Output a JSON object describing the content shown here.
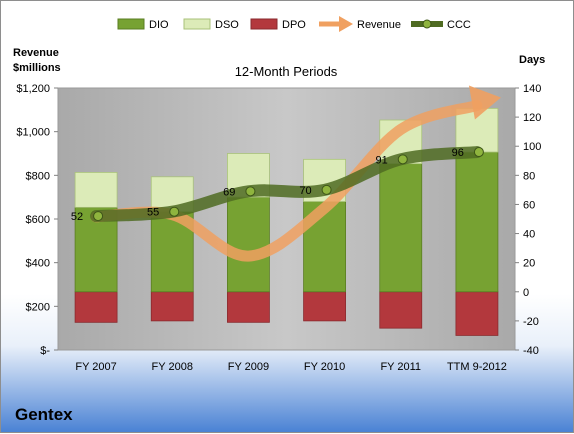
{
  "company": "Gentex",
  "colors": {
    "dio": "#77a232",
    "dso": "#dcebb8",
    "dpo": "#b3383d",
    "revenue": "#f0a060",
    "ccc": "#4f6b22",
    "plot_bg": "#b7b7b7"
  },
  "chart_data": {
    "type": "bar",
    "title": "12-Month Periods",
    "categories": [
      "FY 2007",
      "FY 2008",
      "FY 2009",
      "FY 2010",
      "FY 2011",
      "TTM 9-2012"
    ],
    "left_axis": {
      "title_line1": "Revenue",
      "title_line2": "$millions",
      "range": [
        0,
        1200
      ],
      "ticks": [
        "$-",
        "$200",
        "$400",
        "$600",
        "$800",
        "$1,000",
        "$1,200"
      ]
    },
    "right_axis": {
      "title": "Days",
      "range": [
        -40,
        140
      ],
      "ticks": [
        "-40",
        "-20",
        "0",
        "20",
        "40",
        "60",
        "80",
        "100",
        "120",
        "140"
      ]
    },
    "legend": {
      "position": "top",
      "items": [
        "DIO",
        "DSO",
        "DPO",
        "Revenue",
        "CCC"
      ]
    },
    "days_series": {
      "DIO": [
        58,
        55,
        65,
        62,
        88,
        96
      ],
      "DSO": [
        24,
        24,
        30,
        29,
        30,
        30
      ],
      "DPO": [
        -21,
        -20,
        -21,
        -20,
        -25,
        -30
      ]
    },
    "revenue": [
      610,
      620,
      430,
      650,
      1010,
      1120
    ],
    "ccc": {
      "values": [
        52,
        55,
        69,
        70,
        91,
        96
      ],
      "labels": [
        "52",
        "55",
        "69",
        "70",
        "91",
        "96"
      ]
    }
  }
}
